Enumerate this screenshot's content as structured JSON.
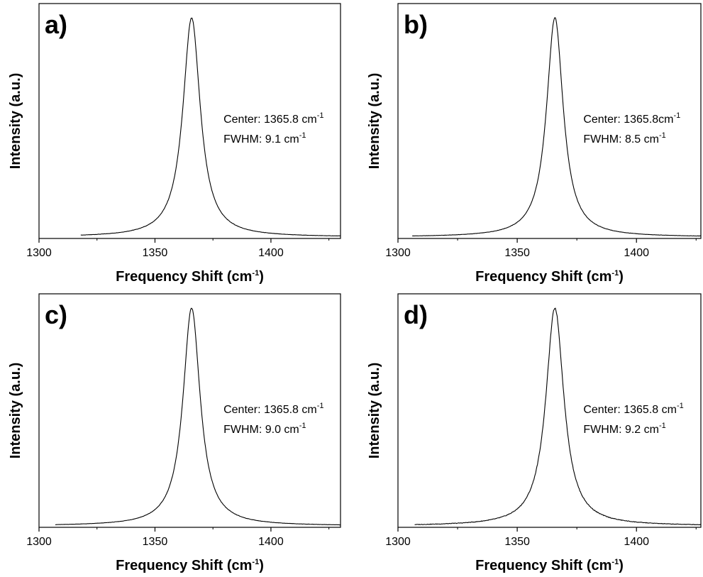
{
  "chart_data": [
    {
      "type": "line",
      "panel_label": "a)",
      "xlabel": {
        "main": "Frequency Shift (cm",
        "sup": "-1",
        "close": ")"
      },
      "ylabel": "Intensity (a.u.)",
      "xlim": [
        1300,
        1430
      ],
      "xticks": [
        "1300",
        "1350",
        "1400"
      ],
      "y_ticks_shown": false,
      "grid": false,
      "series": [
        {
          "peak_center": 1365.8,
          "fwhm": 9.1,
          "x_start": 1318,
          "x_end": 1430
        }
      ],
      "annotations": [
        {
          "main": "Center: 1365.8 cm",
          "sup": "-1"
        },
        {
          "main": "FWHM: 9.1 cm",
          "sup": "-1"
        }
      ]
    },
    {
      "type": "line",
      "panel_label": "b)",
      "xlabel": {
        "main": "Frequency Shift (cm",
        "sup": "-1",
        "close": ")"
      },
      "ylabel": "Intensity (a.u.)",
      "xlim": [
        1300,
        1427
      ],
      "xticks": [
        "1300",
        "1350",
        "1400"
      ],
      "y_ticks_shown": false,
      "grid": false,
      "series": [
        {
          "peak_center": 1365.8,
          "fwhm": 8.5,
          "x_start": 1306,
          "x_end": 1427
        }
      ],
      "annotations": [
        {
          "main": "Center: 1365.8cm",
          "sup": "-1"
        },
        {
          "main": "FWHM: 8.5 cm",
          "sup": "-1"
        }
      ]
    },
    {
      "type": "line",
      "panel_label": "c)",
      "xlabel": {
        "main": "Frequency Shift (cm",
        "sup": "-1",
        "close": ")"
      },
      "ylabel": "Intensity (a.u.)",
      "xlim": [
        1300,
        1430
      ],
      "xticks": [
        "1300",
        "1350",
        "1400"
      ],
      "y_ticks_shown": false,
      "grid": false,
      "series": [
        {
          "peak_center": 1365.8,
          "fwhm": 9.0,
          "x_start": 1307,
          "x_end": 1430
        }
      ],
      "annotations": [
        {
          "main": "Center: 1365.8 cm",
          "sup": "-1"
        },
        {
          "main": "FWHM: 9.0 cm",
          "sup": "-1"
        }
      ]
    },
    {
      "type": "line",
      "panel_label": "d)",
      "xlabel": {
        "main": "Frequency Shift (cm",
        "sup": "-1",
        "close": ")"
      },
      "ylabel": "Intensity (a.u.)",
      "xlim": [
        1300,
        1427
      ],
      "xticks": [
        "1300",
        "1350",
        "1400"
      ],
      "y_ticks_shown": false,
      "grid": false,
      "series": [
        {
          "peak_center": 1365.8,
          "fwhm": 9.2,
          "x_start": 1307,
          "x_end": 1427
        }
      ],
      "annotations": [
        {
          "main": "Center: 1365.8 cm",
          "sup": "-1"
        },
        {
          "main": "FWHM: 9.2 cm",
          "sup": "-1"
        }
      ]
    }
  ]
}
